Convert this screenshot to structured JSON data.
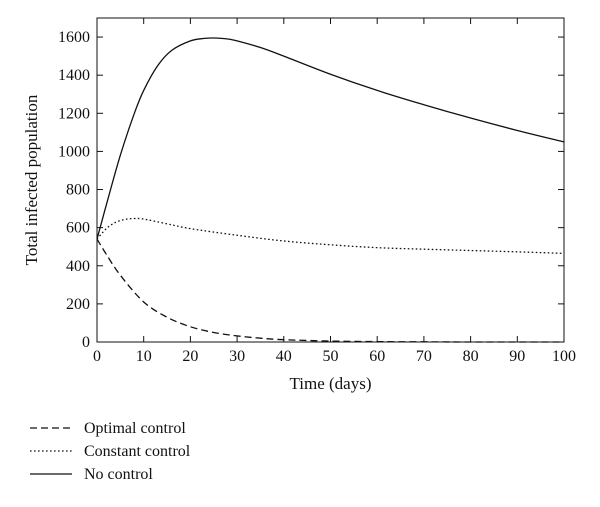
{
  "chart_data": {
    "type": "line",
    "title": "",
    "xlabel": "Time (days)",
    "ylabel": "Total infected population",
    "xlim": [
      0,
      100
    ],
    "ylim": [
      0,
      1700
    ],
    "xticks": [
      0,
      10,
      20,
      30,
      40,
      50,
      60,
      70,
      80,
      90,
      100
    ],
    "yticks": [
      0,
      200,
      400,
      600,
      800,
      1000,
      1200,
      1400,
      1600
    ],
    "grid": false,
    "legend_position": "below",
    "series": [
      {
        "name": "Optimal control",
        "style": "dashed",
        "color": "#111111",
        "x": [
          0,
          2,
          5,
          10,
          15,
          20,
          25,
          30,
          35,
          40,
          50,
          60,
          70,
          80,
          90,
          100
        ],
        "y": [
          540,
          460,
          350,
          210,
          130,
          80,
          50,
          32,
          20,
          12,
          5,
          2,
          1,
          0,
          0,
          0
        ]
      },
      {
        "name": "Constant control",
        "style": "dotted",
        "color": "#111111",
        "x": [
          0,
          2,
          4,
          6,
          8,
          10,
          15,
          20,
          30,
          40,
          50,
          60,
          70,
          80,
          90,
          100
        ],
        "y": [
          540,
          595,
          628,
          643,
          648,
          645,
          620,
          595,
          560,
          530,
          510,
          495,
          487,
          480,
          473,
          465
        ]
      },
      {
        "name": "No control",
        "style": "solid",
        "color": "#111111",
        "x": [
          0,
          2,
          5,
          8,
          10,
          13,
          16,
          20,
          23,
          25,
          28,
          30,
          35,
          40,
          50,
          60,
          70,
          80,
          90,
          100
        ],
        "y": [
          540,
          720,
          980,
          1200,
          1320,
          1450,
          1530,
          1580,
          1593,
          1595,
          1590,
          1580,
          1545,
          1500,
          1405,
          1320,
          1245,
          1175,
          1110,
          1050
        ]
      }
    ]
  }
}
